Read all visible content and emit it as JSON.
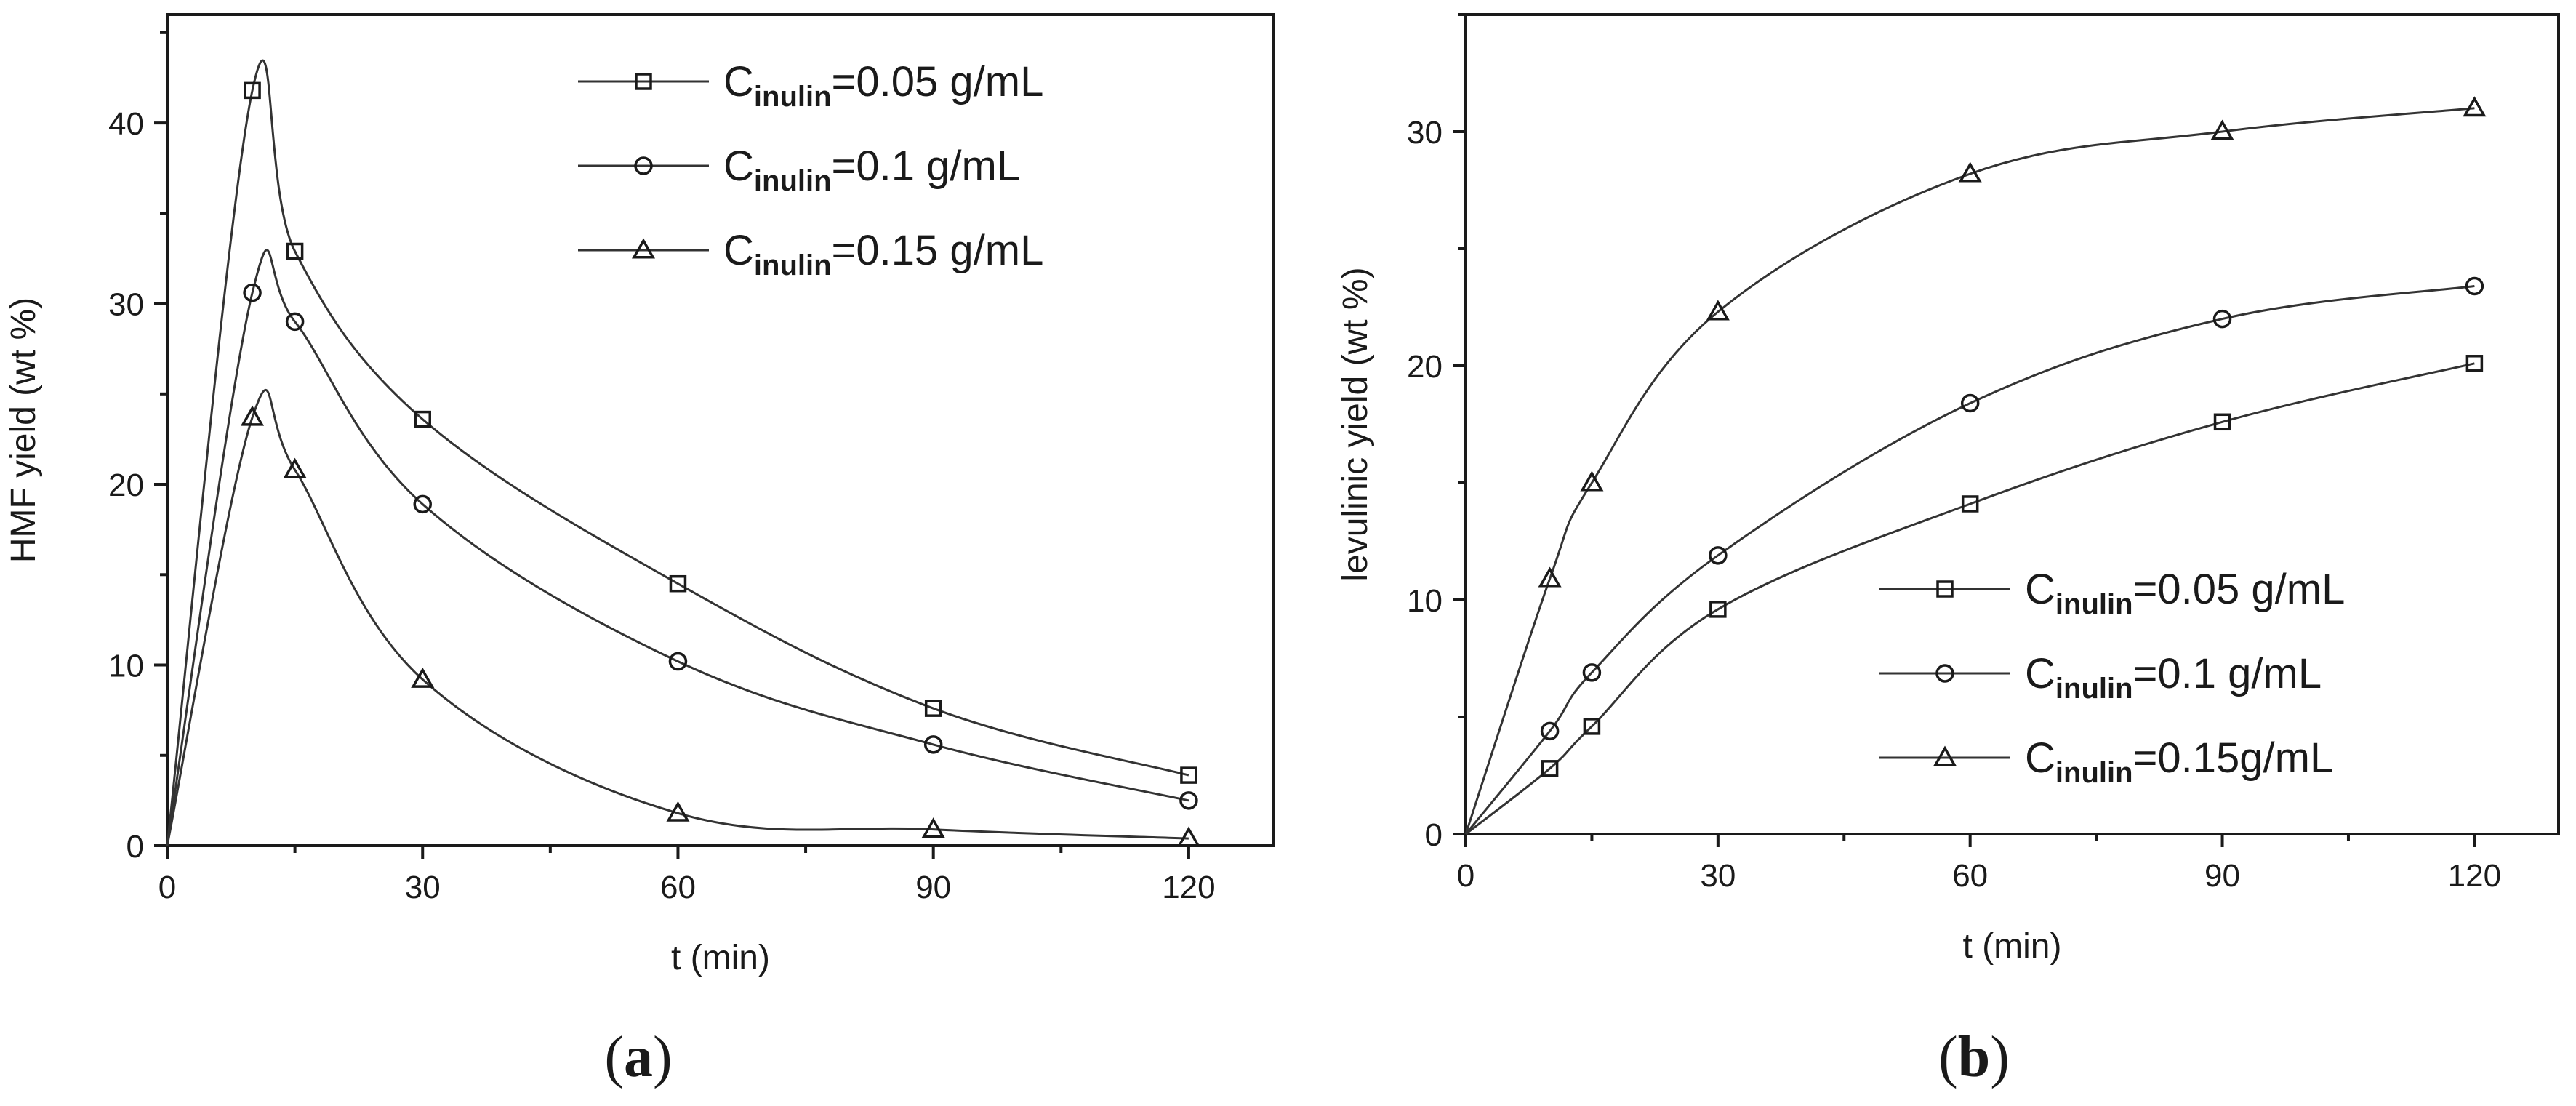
{
  "chart_data": [
    {
      "type": "scatter",
      "panel_label": "a",
      "xlabel": "t (min)",
      "ylabel": "HMF yield (wt %)",
      "xlim": [
        0,
        130
      ],
      "ylim": [
        0,
        46
      ],
      "xticks": [
        0,
        30,
        60,
        90,
        120
      ],
      "yticks": [
        0,
        10,
        20,
        30,
        40
      ],
      "legend_position": "top-right",
      "fit_lines": true,
      "series": [
        {
          "name_prefix": "C",
          "name_sub": "inulin",
          "name_suffix": "=0.05 g/mL",
          "marker": "square",
          "x": [
            0,
            10,
            15,
            30,
            60,
            90,
            120
          ],
          "y": [
            0,
            41.8,
            32.9,
            23.6,
            14.5,
            7.6,
            3.9
          ]
        },
        {
          "name_prefix": "C",
          "name_sub": "inulin",
          "name_suffix": "=0.1 g/mL",
          "marker": "circle",
          "x": [
            0,
            10,
            15,
            30,
            60,
            90,
            120
          ],
          "y": [
            0,
            30.6,
            29.0,
            18.9,
            10.2,
            5.6,
            2.5
          ]
        },
        {
          "name_prefix": "C",
          "name_sub": "inulin",
          "name_suffix": "=0.15 g/mL",
          "marker": "triangle",
          "x": [
            0,
            10,
            15,
            30,
            60,
            90,
            120
          ],
          "y": [
            0,
            23.7,
            20.8,
            9.2,
            1.8,
            0.9,
            0.4
          ]
        }
      ]
    },
    {
      "type": "scatter",
      "panel_label": "b",
      "xlabel": "t (min)",
      "ylabel": "levulinic yield (wt %)",
      "xlim": [
        0,
        130
      ],
      "ylim": [
        0,
        35
      ],
      "xticks": [
        0,
        30,
        60,
        90,
        120
      ],
      "yticks": [
        0,
        10,
        20,
        30
      ],
      "legend_position": "bottom-right",
      "fit_lines": true,
      "series": [
        {
          "name_prefix": "C",
          "name_sub": "inulin",
          "name_suffix": "=0.05 g/mL",
          "marker": "square",
          "x": [
            0,
            10,
            15,
            30,
            60,
            90,
            120
          ],
          "y": [
            0,
            2.8,
            4.6,
            9.6,
            14.1,
            17.6,
            20.1
          ]
        },
        {
          "name_prefix": "C",
          "name_sub": "inulin",
          "name_suffix": "=0.1 g/mL",
          "marker": "circle",
          "x": [
            0,
            10,
            15,
            30,
            60,
            90,
            120
          ],
          "y": [
            0,
            4.4,
            6.9,
            11.9,
            18.4,
            22.0,
            23.4
          ]
        },
        {
          "name_prefix": "C",
          "name_sub": "inulin",
          "name_suffix": "=0.15g/mL",
          "marker": "triangle",
          "x": [
            0,
            10,
            15,
            30,
            60,
            90,
            120
          ],
          "y": [
            0,
            10.9,
            15.0,
            22.3,
            28.2,
            30.0,
            31.0
          ]
        }
      ]
    }
  ]
}
